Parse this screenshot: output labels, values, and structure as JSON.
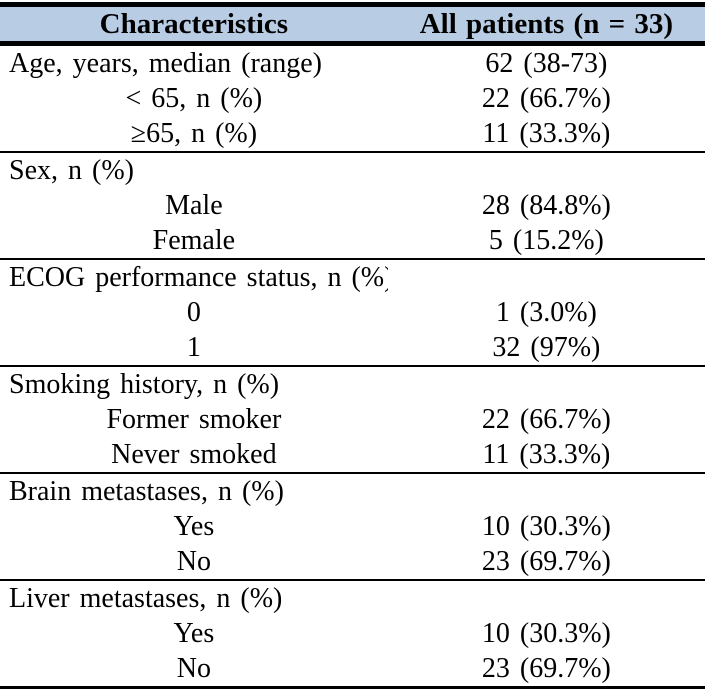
{
  "colors": {
    "header_bg": "#b8cce4",
    "rule": "#000000",
    "text": "#000000",
    "page_bg": "#ffffff"
  },
  "table": {
    "header": {
      "col1": "Characteristics",
      "col2": "All patients (n = 33)"
    },
    "rows": [
      {
        "label": "Age, years, median (range)",
        "value": "62 (38-73)",
        "type": "category"
      },
      {
        "label": "< 65, n (%)",
        "value": "22 (66.7%)",
        "type": "sub"
      },
      {
        "label": "≥65, n (%)",
        "value": "11 (33.3%)",
        "type": "sub"
      },
      {
        "label": "Sex, n (%)",
        "value": "",
        "type": "category"
      },
      {
        "label": "Male",
        "value": "28 (84.8%)",
        "type": "sub"
      },
      {
        "label": "Female",
        "value": "5 (15.2%)",
        "type": "sub"
      },
      {
        "label": "ECOG performance status, n (%)",
        "value": "",
        "type": "category"
      },
      {
        "label": "0",
        "value": "1 (3.0%)",
        "type": "sub"
      },
      {
        "label": "1",
        "value": "32 (97%)",
        "type": "sub"
      },
      {
        "label": "Smoking history, n (%)",
        "value": "",
        "type": "category"
      },
      {
        "label": "Former smoker",
        "value": "22 (66.7%)",
        "type": "sub"
      },
      {
        "label": "Never smoked",
        "value": "11 (33.3%)",
        "type": "sub"
      },
      {
        "label": "Brain metastases, n (%)",
        "value": "",
        "type": "category"
      },
      {
        "label": "Yes",
        "value": "10 (30.3%)",
        "type": "sub"
      },
      {
        "label": "No",
        "value": "23 (69.7%)",
        "type": "sub"
      },
      {
        "label": "Liver metastases, n (%)",
        "value": "",
        "type": "category"
      },
      {
        "label": "Yes",
        "value": "10 (30.3%)",
        "type": "sub"
      },
      {
        "label": "No",
        "value": "23 (69.7%)",
        "type": "sub"
      }
    ]
  },
  "chart_data": {
    "type": "table",
    "title": "",
    "columns": [
      "Characteristics",
      "All patients (n = 33)"
    ],
    "rows": [
      [
        "Age, years, median (range)",
        "62 (38-73)"
      ],
      [
        "< 65, n (%)",
        "22 (66.7%)"
      ],
      [
        "≥65, n (%)",
        "11 (33.3%)"
      ],
      [
        "Sex, n (%)",
        ""
      ],
      [
        "Male",
        "28 (84.8%)"
      ],
      [
        "Female",
        "5 (15.2%)"
      ],
      [
        "ECOG performance status, n (%)",
        ""
      ],
      [
        "0",
        "1 (3.0%)"
      ],
      [
        "1",
        "32 (97%)"
      ],
      [
        "Smoking history, n (%)",
        ""
      ],
      [
        "Former smoker",
        "22 (66.7%)"
      ],
      [
        "Never smoked",
        "11 (33.3%)"
      ],
      [
        "Brain metastases, n (%)",
        ""
      ],
      [
        "Yes",
        "10 (30.3%)"
      ],
      [
        "No",
        "23 (69.7%)"
      ],
      [
        "Liver metastases, n (%)",
        ""
      ],
      [
        "Yes",
        "10 (30.3%)"
      ],
      [
        "No",
        "23 (69.7%)"
      ]
    ]
  }
}
